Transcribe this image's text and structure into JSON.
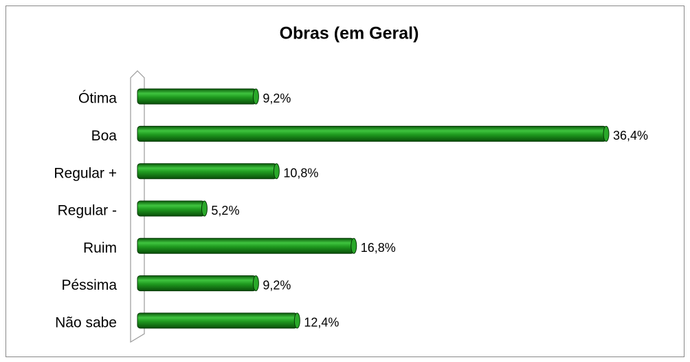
{
  "chart_data": {
    "type": "bar",
    "orientation": "horizontal",
    "title": "Obras (em Geral)",
    "categories": [
      "Ótima",
      "Boa",
      "Regular +",
      "Regular -",
      "Ruim",
      "Péssima",
      "Não sabe"
    ],
    "values": [
      9.2,
      36.4,
      10.8,
      5.2,
      16.8,
      9.2,
      12.4
    ],
    "value_labels": [
      "9,2%",
      "36,4%",
      "10,8%",
      "5,2%",
      "16,8%",
      "9,2%",
      "12,4%"
    ],
    "color": "#1f9a1f"
  }
}
